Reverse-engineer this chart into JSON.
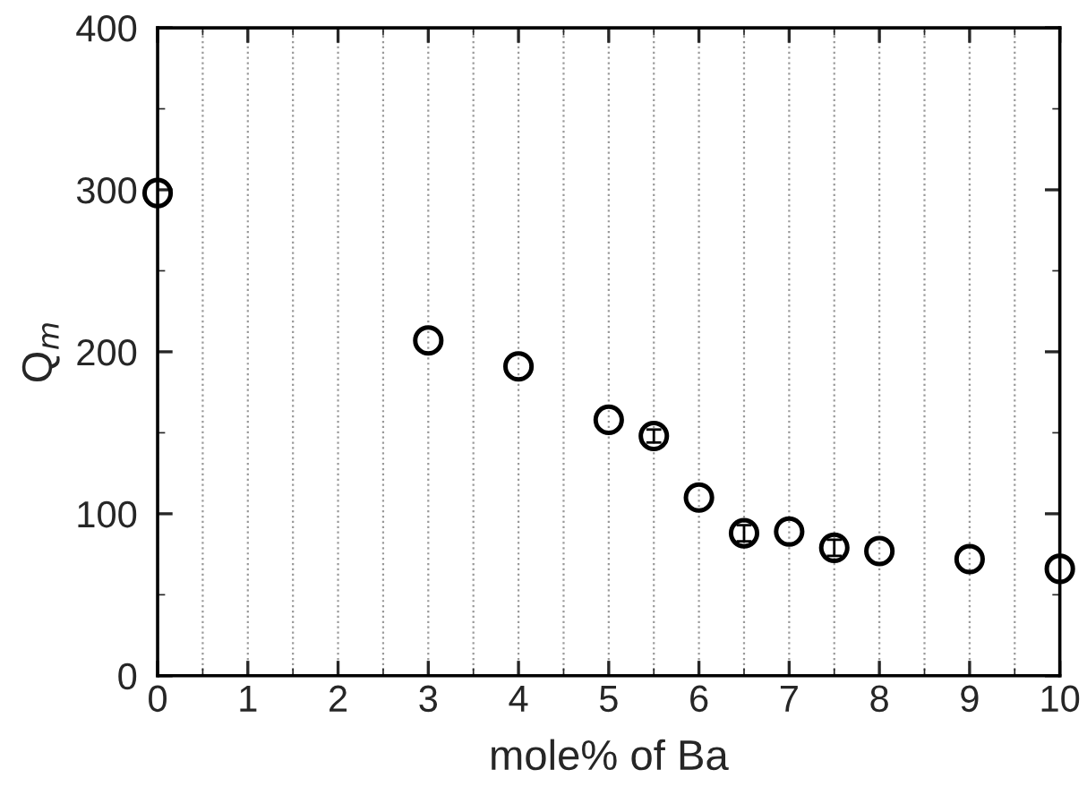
{
  "chart_data": {
    "type": "scatter",
    "xlabel": "mole% of Ba",
    "ylabel": "Q$_{m}$",
    "x": [
      0,
      3,
      4,
      5,
      5.5,
      6,
      6.5,
      7,
      7.5,
      8,
      9,
      10
    ],
    "values": [
      298,
      207,
      191,
      158,
      148,
      110,
      88,
      89,
      79,
      77,
      72,
      66
    ],
    "errors": [
      null,
      null,
      null,
      null,
      4,
      null,
      5,
      null,
      5,
      null,
      null,
      null
    ],
    "color": "#000000",
    "marker": "circle",
    "xlim": [
      0,
      10
    ],
    "xticks": [
      0,
      1,
      2,
      3,
      4,
      5,
      6,
      7,
      8,
      9,
      10
    ],
    "ylim": [
      0,
      400
    ],
    "yticks": [
      0,
      100,
      200,
      300,
      400
    ],
    "grid": "x"
  }
}
